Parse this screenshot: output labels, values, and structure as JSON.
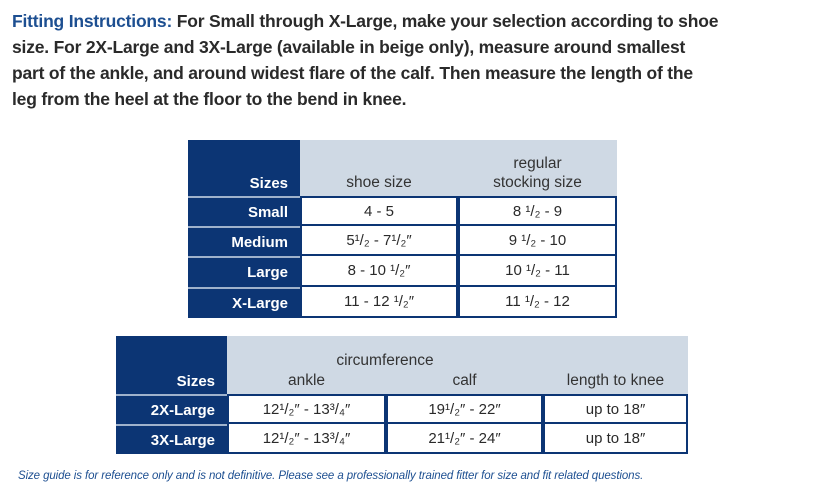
{
  "intro": {
    "lead": "Fitting Instructions:",
    "lines": [
      " For Small through X-Large, make your selection according to shoe",
      "size. For 2X-Large and 3X-Large (available in beige only), measure around smallest",
      "part of the ankle, and around widest flare of the calf. Then measure the length of the",
      "leg from the heel at the floor to the bend in knee."
    ]
  },
  "table1": {
    "headers": [
      "Sizes",
      "shoe size",
      "regular",
      "stocking size"
    ],
    "rows": [
      {
        "size": "Small",
        "shoe": "4 - 5",
        "stocking": "8 ¹/₂ - 9"
      },
      {
        "size": "Medium",
        "shoe": "5¹/₂ - 7¹/₂″",
        "stocking": "9 ¹/₂ - 10"
      },
      {
        "size": "Large",
        "shoe": "8 - 10 ¹/₂″",
        "stocking": "10 ¹/₂ - 11"
      },
      {
        "size": "X-Large",
        "shoe": "11 - 12 ¹/₂″",
        "stocking": "11 ¹/₂ - 12"
      }
    ]
  },
  "table2": {
    "headers": [
      "Sizes",
      "circumference",
      "ankle",
      "calf",
      "length to knee"
    ],
    "rows": [
      {
        "size": "2X-Large",
        "ankle": "12¹/₂″ - 13³/₄″",
        "calf": "19¹/₂″ - 22″",
        "length": "up to 18″"
      },
      {
        "size": "3X-Large",
        "ankle": "12¹/₂″ - 13³/₄″",
        "calf": "21¹/₂″ - 24″",
        "length": "up to 18″"
      }
    ]
  },
  "footnote": "Size guide is for reference only and is not definitive. Please see a professionally trained fitter for size and fit related questions."
}
